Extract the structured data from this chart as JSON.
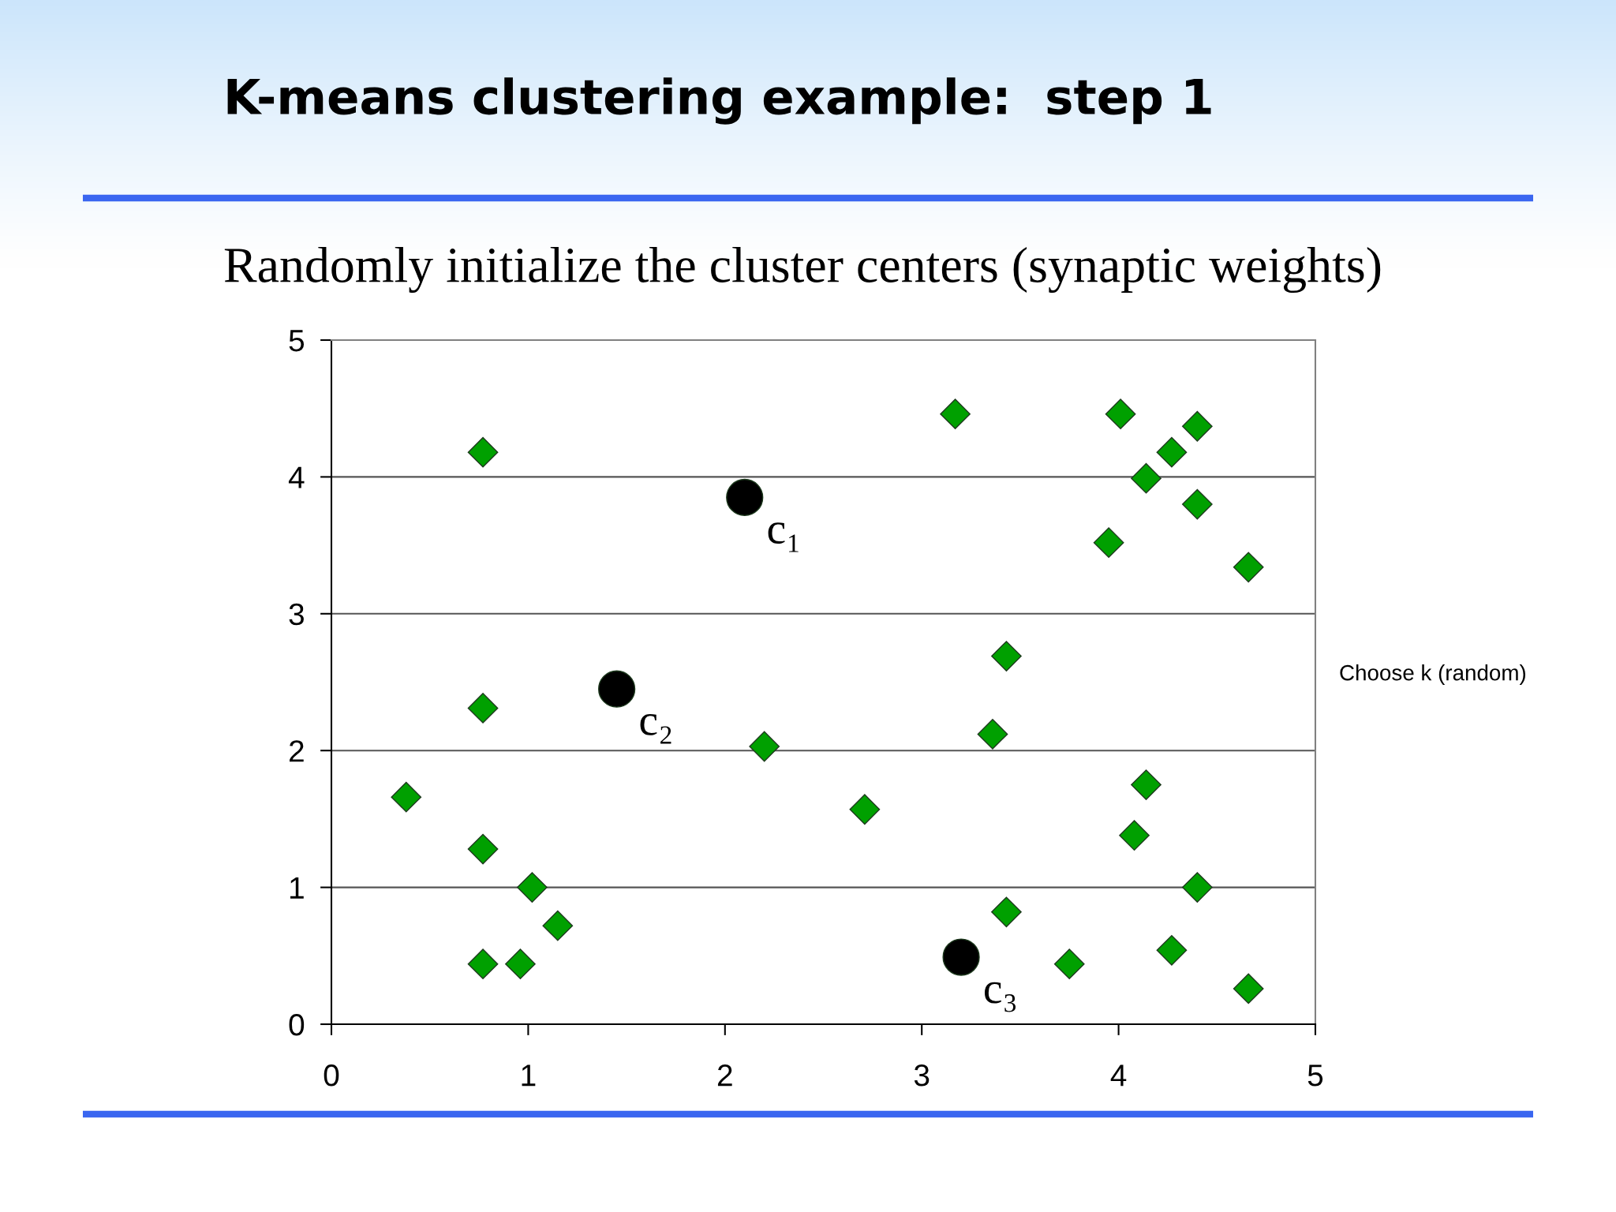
{
  "chart_data": {
    "type": "scatter",
    "title": "K-means clustering example:  step 1",
    "subtitle": "Randomly initialize the cluster centers (synaptic weights)",
    "annotations": [
      {
        "text": "c₁",
        "x": 2.1,
        "y": 3.85
      },
      {
        "text": "c₂",
        "x": 1.45,
        "y": 2.45
      },
      {
        "text": "c₃",
        "x": 3.2,
        "y": 0.49
      },
      "Choose k (random)"
    ],
    "series": [
      {
        "color": "#00a000",
        "marker": "diamond",
        "x": [
          0.77,
          0.77,
          0.38,
          0.77,
          1.02,
          1.15,
          0.77,
          0.96,
          2.2,
          2.71,
          3.17,
          4.01,
          4.4,
          4.27,
          4.14,
          4.4,
          3.95,
          4.66,
          3.43,
          3.36,
          4.14,
          4.08,
          4.4,
          3.43,
          3.75,
          4.27,
          4.66
        ],
        "values": [
          4.18,
          2.31,
          1.66,
          1.28,
          1.0,
          0.72,
          0.44,
          0.44,
          2.03,
          1.57,
          4.46,
          4.46,
          4.37,
          4.18,
          3.99,
          3.8,
          3.52,
          3.34,
          2.69,
          2.12,
          1.75,
          1.38,
          1.0,
          0.82,
          0.44,
          0.54,
          0.26
        ]
      },
      {
        "color": "#000000",
        "marker": "circle",
        "x": [
          2.1,
          1.45,
          3.2
        ],
        "values": [
          3.85,
          2.45,
          0.49
        ]
      }
    ],
    "xlim": [
      0,
      5
    ],
    "ylim": [
      0,
      5
    ],
    "xticks": [
      0,
      1,
      2,
      3,
      4,
      5
    ],
    "yticks": [
      0,
      1,
      2,
      3,
      4,
      5
    ],
    "grid": "y"
  }
}
